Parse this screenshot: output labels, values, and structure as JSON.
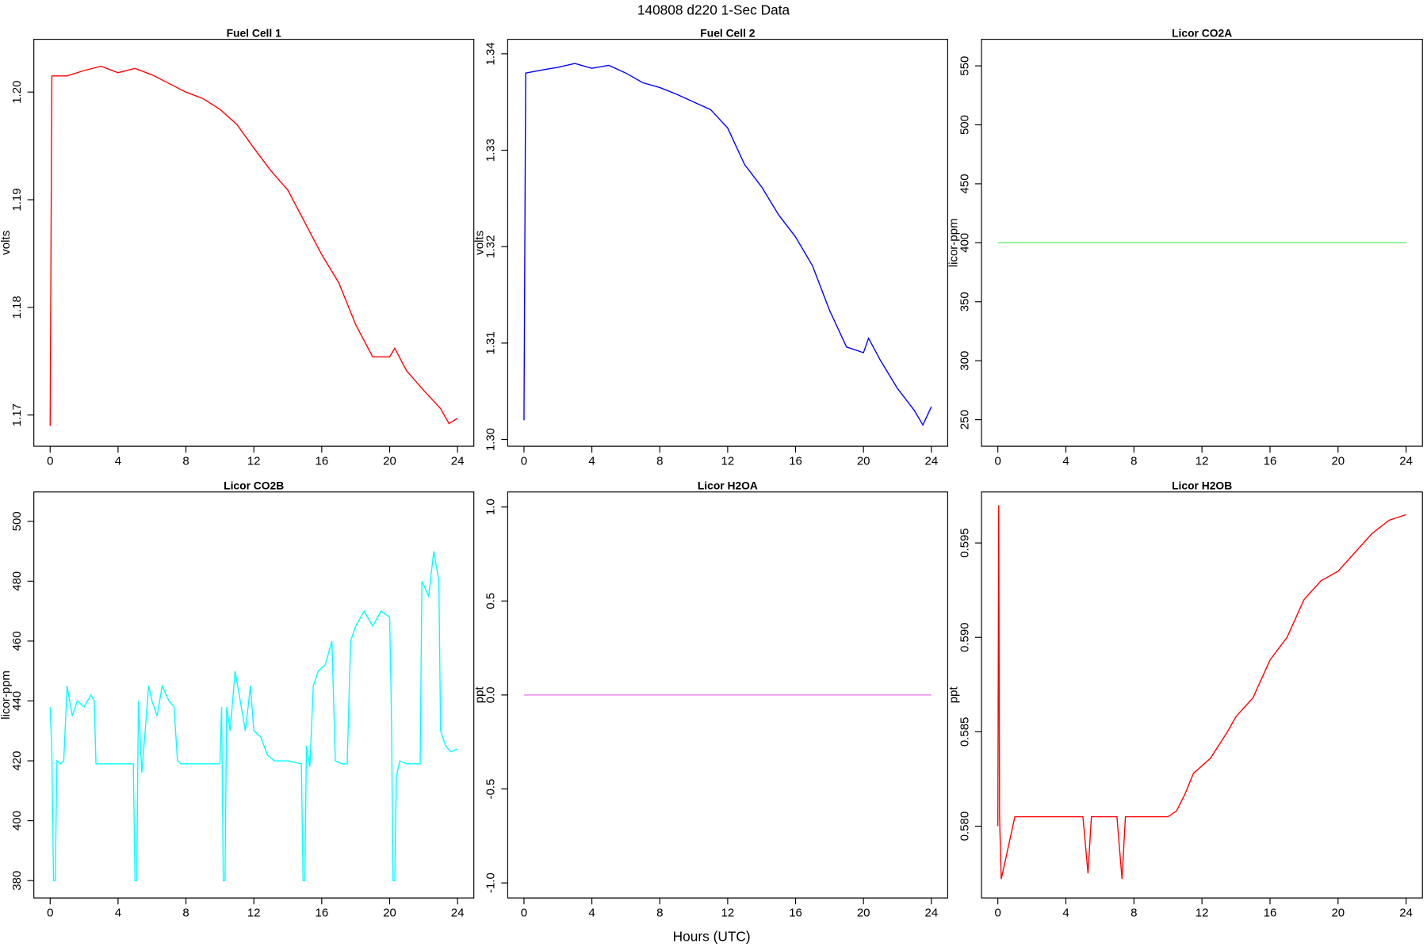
{
  "title": "140808   d220   1-Sec Data",
  "x_label": "Hours (UTC)",
  "chart_data": [
    {
      "type": "line",
      "title": "Fuel Cell 1",
      "y_label": "volts",
      "x": [
        0,
        0.1,
        1,
        2,
        3,
        4,
        5,
        6,
        7,
        8,
        9,
        10,
        11,
        12,
        13,
        14,
        15,
        16,
        17,
        18,
        19,
        20,
        20.3,
        21,
        22,
        23,
        23.5,
        24
      ],
      "series": [
        {
          "color": "#ff0000",
          "values": [
            1.169,
            1.2015,
            1.2015,
            1.202,
            1.2024,
            1.2018,
            1.2022,
            1.2016,
            1.2008,
            1.2,
            1.1994,
            1.1984,
            1.197,
            1.1948,
            1.1927,
            1.1909,
            1.1879,
            1.1849,
            1.1823,
            1.1784,
            1.1754,
            1.1754,
            1.1762,
            1.1741,
            1.1723,
            1.1706,
            1.1692,
            1.1697
          ]
        }
      ],
      "xlim": [
        -0.96,
        24.96
      ],
      "ylim": [
        1.1671,
        1.2049
      ],
      "xticks": [
        0,
        4,
        8,
        12,
        16,
        20,
        24
      ],
      "yticks": [
        {
          "value": 1.17,
          "label": "1.17"
        },
        {
          "value": 1.18,
          "label": "1.18"
        },
        {
          "value": 1.19,
          "label": "1.19"
        },
        {
          "value": 1.2,
          "label": "1.20"
        }
      ]
    },
    {
      "type": "line",
      "title": "Fuel Cell 2",
      "y_label": "volts",
      "x": [
        0,
        0.1,
        1,
        2,
        3,
        4,
        5,
        6,
        7,
        8,
        9,
        10,
        11,
        12,
        13,
        14,
        15,
        16,
        17,
        18,
        19,
        20,
        20.3,
        21,
        22,
        23,
        23.5,
        24
      ],
      "series": [
        {
          "color": "#0000ff",
          "values": [
            1.302,
            1.338,
            1.3383,
            1.3386,
            1.339,
            1.3385,
            1.3388,
            1.338,
            1.337,
            1.3365,
            1.3358,
            1.335,
            1.3342,
            1.3323,
            1.3285,
            1.3262,
            1.3233,
            1.321,
            1.318,
            1.3134,
            1.3096,
            1.309,
            1.3105,
            1.3082,
            1.3053,
            1.303,
            1.3015,
            1.3034
          ]
        }
      ],
      "xlim": [
        -0.96,
        24.96
      ],
      "ylim": [
        1.2993,
        1.3415
      ],
      "xticks": [
        0,
        4,
        8,
        12,
        16,
        20,
        24
      ],
      "yticks": [
        {
          "value": 1.3,
          "label": "1.30"
        },
        1.31,
        1.32,
        1.33,
        1.34
      ]
    },
    {
      "type": "line",
      "title": "Licor CO2A",
      "y_label": "licor-ppm",
      "x": [
        0,
        24
      ],
      "series": [
        {
          "color": "#66ee66",
          "values": [
            400,
            400
          ]
        }
      ],
      "xlim": [
        -0.96,
        24.96
      ],
      "ylim": [
        227.5,
        572.5
      ],
      "xticks": [
        0,
        4,
        8,
        12,
        16,
        20,
        24
      ],
      "yticks": [
        250,
        300,
        350,
        400,
        450,
        500,
        550
      ]
    },
    {
      "type": "line",
      "title": "Licor CO2B",
      "y_label": "licor-ppm",
      "x": [
        0,
        0.1,
        0.2,
        0.3,
        0.4,
        0.6,
        0.8,
        1,
        1.3,
        1.6,
        2,
        2.4,
        2.6,
        2.7,
        3,
        4.9,
        5,
        5.1,
        5.2,
        5.4,
        5.6,
        5.8,
        6,
        6.3,
        6.6,
        7,
        7.3,
        7.5,
        7.7,
        10,
        10.1,
        10.2,
        10.3,
        10.4,
        10.6,
        10.9,
        11.2,
        11.5,
        11.8,
        12,
        12.4,
        12.8,
        13.2,
        14,
        14.8,
        14.9,
        15,
        15.1,
        15.3,
        15.5,
        15.8,
        16.2,
        16.6,
        16.8,
        17.2,
        17.5,
        17.7,
        18,
        18.5,
        19,
        19.5,
        20,
        20.1,
        20.2,
        20.3,
        20.4,
        20.6,
        21,
        21.8,
        21.9,
        22.3,
        22.6,
        22.9,
        23,
        23.3,
        23.6,
        24
      ],
      "series": [
        {
          "color": "#00ffff",
          "values": [
            438,
            423,
            380,
            380,
            420,
            419,
            420,
            445,
            435,
            440,
            438,
            442,
            440,
            419,
            419,
            419,
            380,
            380,
            440,
            416,
            430,
            445,
            440,
            435,
            445,
            440,
            438,
            420,
            419,
            419,
            438,
            380,
            380,
            438,
            430,
            450,
            440,
            430,
            445,
            430,
            428,
            422,
            420,
            420,
            419,
            380,
            380,
            425,
            418,
            445,
            450,
            452,
            460,
            420,
            419,
            419,
            460,
            465,
            470,
            465,
            470,
            468,
            438,
            380,
            380,
            415,
            420,
            419,
            419,
            480,
            475,
            490,
            480,
            430,
            425,
            423,
            424
          ]
        }
      ],
      "xlim": [
        -0.96,
        24.96
      ],
      "ylim": [
        374.2,
        509.8
      ],
      "xticks": [
        0,
        4,
        8,
        12,
        16,
        20,
        24
      ],
      "yticks": [
        380,
        400,
        420,
        440,
        460,
        480,
        500
      ]
    },
    {
      "type": "line",
      "title": "Licor H2OA",
      "y_label": "ppt",
      "x": [
        0,
        24
      ],
      "series": [
        {
          "color": "#ee82ee",
          "values": [
            0,
            0
          ]
        }
      ],
      "xlim": [
        -0.96,
        24.96
      ],
      "ylim": [
        -1.08,
        1.08
      ],
      "xticks": [
        0,
        4,
        8,
        12,
        16,
        20,
        24
      ],
      "yticks": [
        {
          "value": -1,
          "label": "-1.0"
        },
        -0.5,
        {
          "value": 0,
          "label": "0.0"
        },
        0.5,
        {
          "value": 1,
          "label": "1.0"
        }
      ]
    },
    {
      "type": "line",
      "title": "Licor H2OB",
      "y_label": "ppt",
      "x": [
        0,
        0.05,
        0.1,
        0.2,
        1,
        2,
        3,
        4,
        5,
        5.3,
        5.5,
        6,
        7,
        7.3,
        7.5,
        8,
        9,
        10,
        10.5,
        11,
        11.5,
        12.5,
        13.5,
        14,
        15,
        15.5,
        16,
        17,
        17.5,
        18,
        19,
        20,
        21,
        22,
        23,
        24
      ],
      "series": [
        {
          "color": "#ff0000",
          "values": [
            0.58,
            0.597,
            0.5805,
            0.5772,
            0.5805,
            0.5805,
            0.5805,
            0.5805,
            0.5805,
            0.5775,
            0.5805,
            0.5805,
            0.5805,
            0.5772,
            0.5805,
            0.5805,
            0.5805,
            0.5805,
            0.5808,
            0.5817,
            0.5828,
            0.5836,
            0.585,
            0.5858,
            0.5868,
            0.5878,
            0.5888,
            0.59,
            0.591,
            0.592,
            0.593,
            0.5935,
            0.5945,
            0.5955,
            0.5962,
            0.5965
          ]
        }
      ],
      "xlim": [
        -0.96,
        24.96
      ],
      "ylim": [
        0.5762,
        0.5977
      ],
      "xticks": [
        0,
        4,
        8,
        12,
        16,
        20,
        24
      ],
      "yticks": [
        {
          "value": 0.58,
          "label": "0.580"
        },
        0.585,
        {
          "value": 0.59,
          "label": "0.590"
        },
        0.595
      ]
    }
  ]
}
